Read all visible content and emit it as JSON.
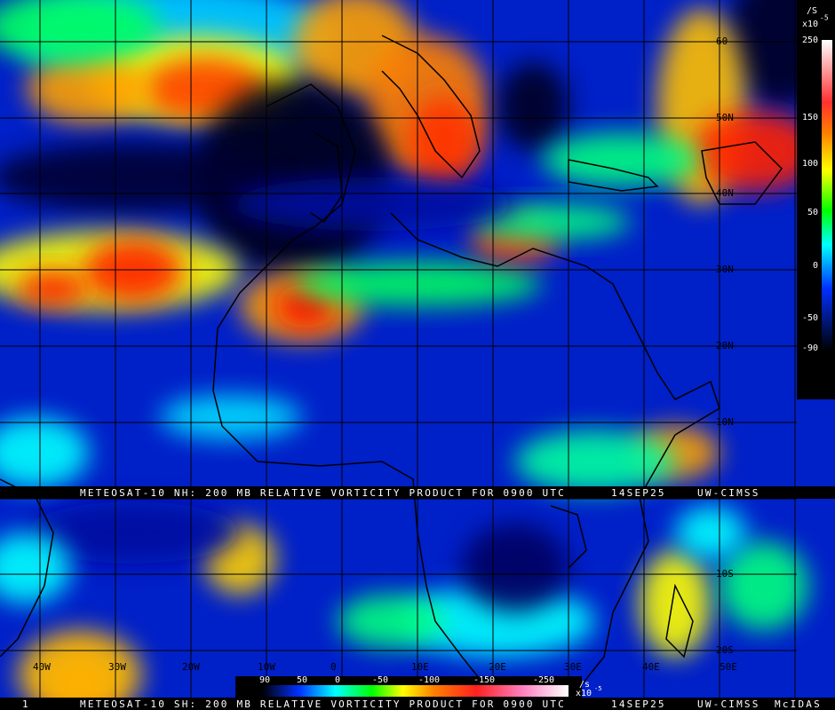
{
  "banner_nh": {
    "product": "METEOSAT-10 NH: 200 MB RELATIVE VORTICITY PRODUCT FOR 0900 UTC",
    "date": "14SEP25",
    "source": "UW-CIMSS"
  },
  "banner_sh": {
    "frame": "1",
    "product": "METEOSAT-10 SH: 200 MB RELATIVE VORTICITY PRODUCT FOR 0900 UTC",
    "date": "14SEP25",
    "source": "UW-CIMSS",
    "software": "McIDAS"
  },
  "lat_labels": [
    "60",
    "50N",
    "40N",
    "30N",
    "20N",
    "10N",
    "10S",
    "20S"
  ],
  "lon_labels": [
    "40W",
    "30W",
    "20W",
    "10W",
    "0",
    "10E",
    "20E",
    "30E",
    "40E",
    "50E"
  ],
  "colorbar_right": {
    "unit": "/S",
    "scale": "x10",
    "exponent": "-5",
    "labels": [
      "250",
      "150",
      "100",
      "50",
      "0",
      "-50",
      "-90"
    ]
  },
  "colorbar_bottom": {
    "unit": "/s",
    "scale": "x10",
    "exponent": "-5",
    "labels": [
      "90",
      "50",
      "0",
      "-50",
      "-100",
      "-150",
      "-250"
    ]
  }
}
